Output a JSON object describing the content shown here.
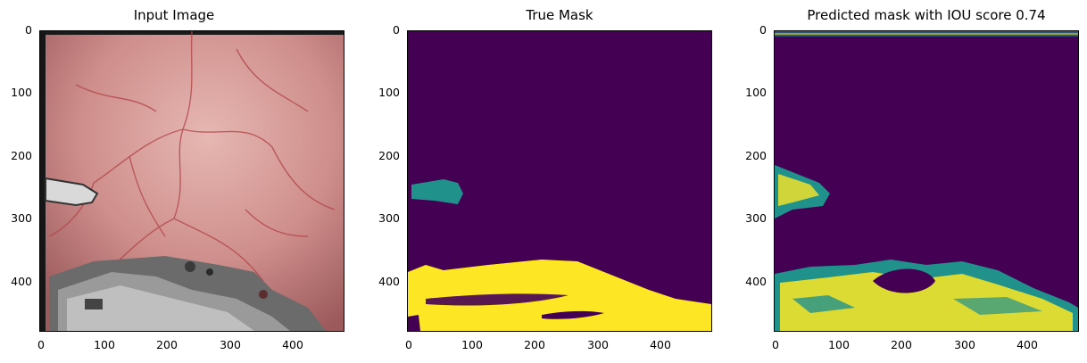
{
  "panels": [
    {
      "title": "Input Image"
    },
    {
      "title": "True Mask"
    },
    {
      "title": "Predicted mask with IOU score 0.74"
    }
  ],
  "axis": {
    "x_ticks": [
      "0",
      "100",
      "200",
      "300",
      "400"
    ],
    "y_ticks": [
      "0",
      "100",
      "200",
      "300",
      "400"
    ]
  },
  "colors": {
    "background_class": "#440154",
    "class_1": "#21918c",
    "class_2": "#fde725",
    "tissue": "#c98a8a"
  }
}
